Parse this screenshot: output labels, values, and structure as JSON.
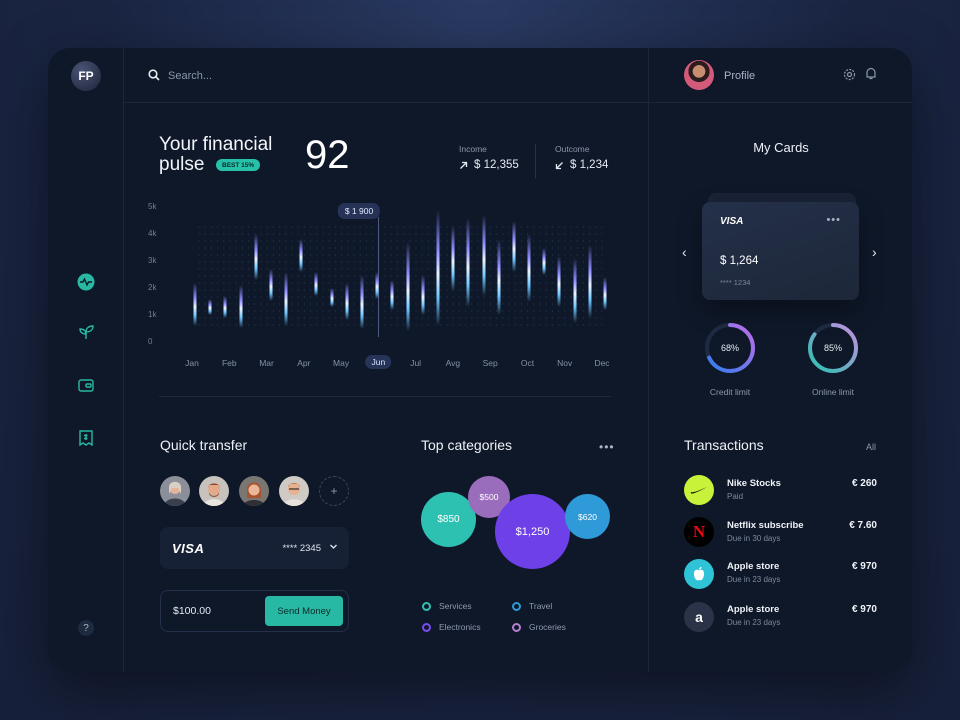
{
  "app": {
    "logo": "FP"
  },
  "search": {
    "placeholder": "Search..."
  },
  "profile": {
    "label": "Profile"
  },
  "pulse": {
    "title_line1": "Your financial",
    "title_line2": "pulse",
    "badge": "BEST 15%",
    "score": "92",
    "income_label": "Income",
    "income_value": "$ 12,355",
    "outcome_label": "Outcome",
    "outcome_value": "$ 1,234"
  },
  "chart_data": {
    "type": "bar",
    "categories": [
      "Jan",
      "Feb",
      "Mar",
      "Apr",
      "May",
      "Jun",
      "Jul",
      "Avg",
      "Sep",
      "Oct",
      "Nov",
      "Dec"
    ],
    "y_ticks": [
      "5k",
      "4k",
      "3k",
      "2k",
      "1k",
      "0"
    ],
    "ylim": [
      0,
      5000
    ],
    "highlight": {
      "category": "Jun",
      "label": "$ 1 900"
    },
    "series": [
      {
        "values": [
          [
            600,
            2200
          ],
          [
            1000,
            1600
          ],
          [
            900,
            1700
          ],
          [
            500,
            2100
          ],
          [
            2300,
            4000
          ],
          [
            1500,
            2700
          ],
          [
            600,
            2600
          ],
          [
            2600,
            3800
          ],
          [
            1700,
            2600
          ],
          [
            1300,
            2000
          ],
          [
            800,
            2200
          ],
          [
            500,
            2500
          ],
          [
            1600,
            2600
          ],
          [
            1200,
            2300
          ],
          [
            400,
            3700
          ],
          [
            1000,
            2500
          ],
          [
            600,
            4900
          ],
          [
            1900,
            4300
          ],
          [
            1300,
            4600
          ],
          [
            1700,
            4700
          ],
          [
            1000,
            3800
          ],
          [
            2600,
            4500
          ],
          [
            1500,
            4000
          ],
          [
            2500,
            3500
          ],
          [
            1300,
            3200
          ],
          [
            700,
            3100
          ],
          [
            900,
            3600
          ],
          [
            1200,
            2400
          ]
        ]
      }
    ]
  },
  "quick_transfer": {
    "title": "Quick transfer",
    "card_brand": "VISA",
    "card_number": "**** 2345",
    "amount": "$100.00",
    "send_label": "Send Money"
  },
  "top_categories": {
    "title": "Top categories",
    "bubbles": [
      {
        "label": "$850",
        "color": "#2cc1b0"
      },
      {
        "label": "$500",
        "color": "#9a6cbc"
      },
      {
        "label": "$1,250",
        "color": "#6e40e8"
      },
      {
        "label": "$620",
        "color": "#2f9ad8"
      }
    ],
    "legend": [
      {
        "label": "Services",
        "color": "#2cc1b0"
      },
      {
        "label": "Travel",
        "color": "#2f9ad8"
      },
      {
        "label": "Electronics",
        "color": "#7a4df0"
      },
      {
        "label": "Groceries",
        "color": "#b77fd2"
      }
    ]
  },
  "my_cards": {
    "title": "My Cards",
    "card_brand": "VISA",
    "card_amount": "$ 1,264",
    "card_number": "**** 1234",
    "credit_percent": "68%",
    "credit_value": 0.68,
    "credit_label": "Credit limit",
    "online_percent": "85%",
    "online_value": 0.85,
    "online_label": "Online limit"
  },
  "transactions": {
    "title": "Transactions",
    "all_label": "All",
    "items": [
      {
        "name": "Nike Stocks",
        "sub": "Paid",
        "amount": "€ 260",
        "icon": "nike-icon"
      },
      {
        "name": "Netflix subscribe",
        "sub": "Due in 30 days",
        "amount": "€ 7.60",
        "icon": "netflix-icon"
      },
      {
        "name": "Apple store",
        "sub": "Due in 23 days",
        "amount": "€ 970",
        "icon": "apple-icon"
      },
      {
        "name": "Apple store",
        "sub": "Due in 23 days",
        "amount": "€ 970",
        "icon": "amazon-icon"
      }
    ]
  },
  "help": {
    "label": "?"
  },
  "colors": {
    "accent": "#28b9a4",
    "panel": "#0f1829",
    "purple": "#6e40e8"
  }
}
